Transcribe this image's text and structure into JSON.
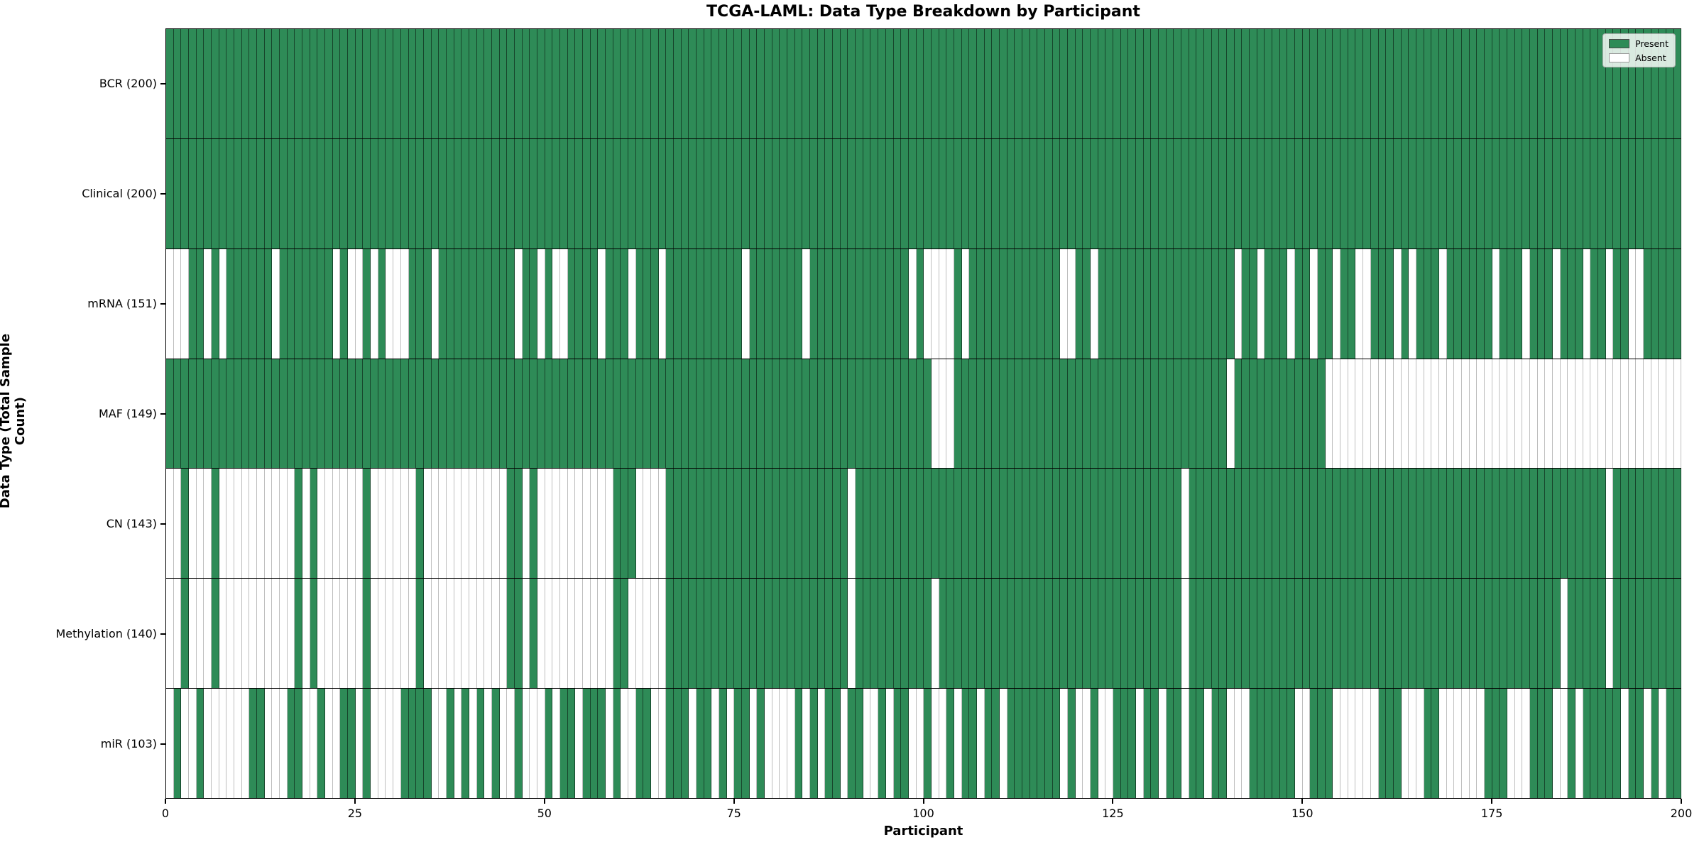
{
  "title": "TCGA-LAML: Data Type Breakdown by Participant",
  "xlabel": "Participant",
  "ylabel": "Data Type (Total Sample Count)",
  "legend": {
    "present_label": "Present",
    "absent_label": "Absent"
  },
  "colors": {
    "present": "#2e8b57",
    "absent": "#ffffff"
  },
  "chart_data": {
    "type": "heatmap",
    "title": "TCGA-LAML: Data Type Breakdown by Participant",
    "xlabel": "Participant",
    "ylabel": "Data Type (Total Sample Count)",
    "n_participants": 200,
    "x_range": [
      0,
      200
    ],
    "x_ticks": [
      0,
      25,
      50,
      75,
      100,
      125,
      150,
      175,
      200
    ],
    "legend_position": "upper right",
    "cell_values": "1 = Present (green), 0 = Absent (white); participants indexed 0-199",
    "rows": [
      {
        "label": "BCR (200)",
        "data_type": "BCR",
        "present_count": 200,
        "absent_participants": []
      },
      {
        "label": "Clinical (200)",
        "data_type": "Clinical",
        "present_count": 200,
        "absent_participants": []
      },
      {
        "label": "mRNA (151)",
        "data_type": "mRNA",
        "present_count": 151,
        "absent_participants": [
          0,
          1,
          2,
          5,
          7,
          14,
          22,
          24,
          25,
          27,
          29,
          30,
          31,
          35,
          46,
          49,
          51,
          52,
          57,
          61,
          65,
          76,
          84,
          98,
          100,
          101,
          102,
          103,
          105,
          118,
          119,
          122,
          141,
          144,
          148,
          151,
          154,
          157,
          158,
          162,
          164,
          168,
          175,
          179,
          183,
          187,
          190,
          193,
          194
        ]
      },
      {
        "label": "MAF (149)",
        "data_type": "MAF",
        "present_count": 149,
        "absent_participants": [
          101,
          102,
          103,
          140,
          153,
          154,
          155,
          156,
          157,
          158,
          159,
          160,
          161,
          162,
          163,
          164,
          165,
          166,
          167,
          168,
          169,
          170,
          171,
          172,
          173,
          174,
          175,
          176,
          177,
          178,
          179,
          180,
          181,
          182,
          183,
          184,
          185,
          186,
          187,
          188,
          189,
          190,
          191,
          192,
          193,
          194,
          195,
          196,
          197,
          198,
          199
        ]
      },
      {
        "label": "CN (143)",
        "data_type": "CN",
        "present_count": 143,
        "absent_participants": [
          0,
          1,
          3,
          4,
          5,
          7,
          8,
          9,
          10,
          11,
          12,
          13,
          14,
          15,
          16,
          18,
          20,
          21,
          22,
          23,
          24,
          25,
          27,
          28,
          29,
          30,
          31,
          32,
          34,
          35,
          36,
          37,
          38,
          39,
          40,
          41,
          42,
          43,
          44,
          47,
          49,
          50,
          51,
          52,
          53,
          54,
          55,
          56,
          57,
          58,
          62,
          63,
          64,
          65,
          90,
          134,
          190
        ]
      },
      {
        "label": "Methylation (140)",
        "data_type": "Methylation",
        "present_count": 140,
        "absent_participants": [
          0,
          1,
          3,
          4,
          5,
          7,
          8,
          9,
          10,
          11,
          12,
          13,
          14,
          15,
          16,
          18,
          20,
          21,
          22,
          23,
          24,
          25,
          27,
          28,
          29,
          30,
          31,
          32,
          34,
          35,
          36,
          37,
          38,
          39,
          40,
          41,
          42,
          43,
          44,
          47,
          49,
          50,
          51,
          52,
          53,
          54,
          55,
          56,
          57,
          58,
          61,
          62,
          63,
          64,
          65,
          90,
          101,
          134,
          184,
          190
        ]
      },
      {
        "label": "miR (103)",
        "data_type": "miR",
        "present_count": 103,
        "absent_participants": [
          0,
          2,
          3,
          5,
          6,
          7,
          8,
          9,
          10,
          13,
          14,
          15,
          18,
          19,
          21,
          22,
          25,
          27,
          28,
          29,
          30,
          35,
          36,
          38,
          40,
          42,
          44,
          45,
          47,
          48,
          49,
          51,
          54,
          58,
          60,
          61,
          64,
          65,
          69,
          72,
          74,
          77,
          79,
          80,
          81,
          82,
          84,
          86,
          89,
          92,
          93,
          95,
          98,
          99,
          101,
          102,
          104,
          107,
          110,
          118,
          120,
          121,
          123,
          124,
          128,
          131,
          134,
          137,
          140,
          141,
          142,
          149,
          150,
          154,
          155,
          156,
          157,
          158,
          159,
          163,
          164,
          165,
          168,
          169,
          170,
          171,
          172,
          173,
          177,
          178,
          179,
          183,
          184,
          186,
          192,
          195,
          197
        ]
      }
    ]
  }
}
